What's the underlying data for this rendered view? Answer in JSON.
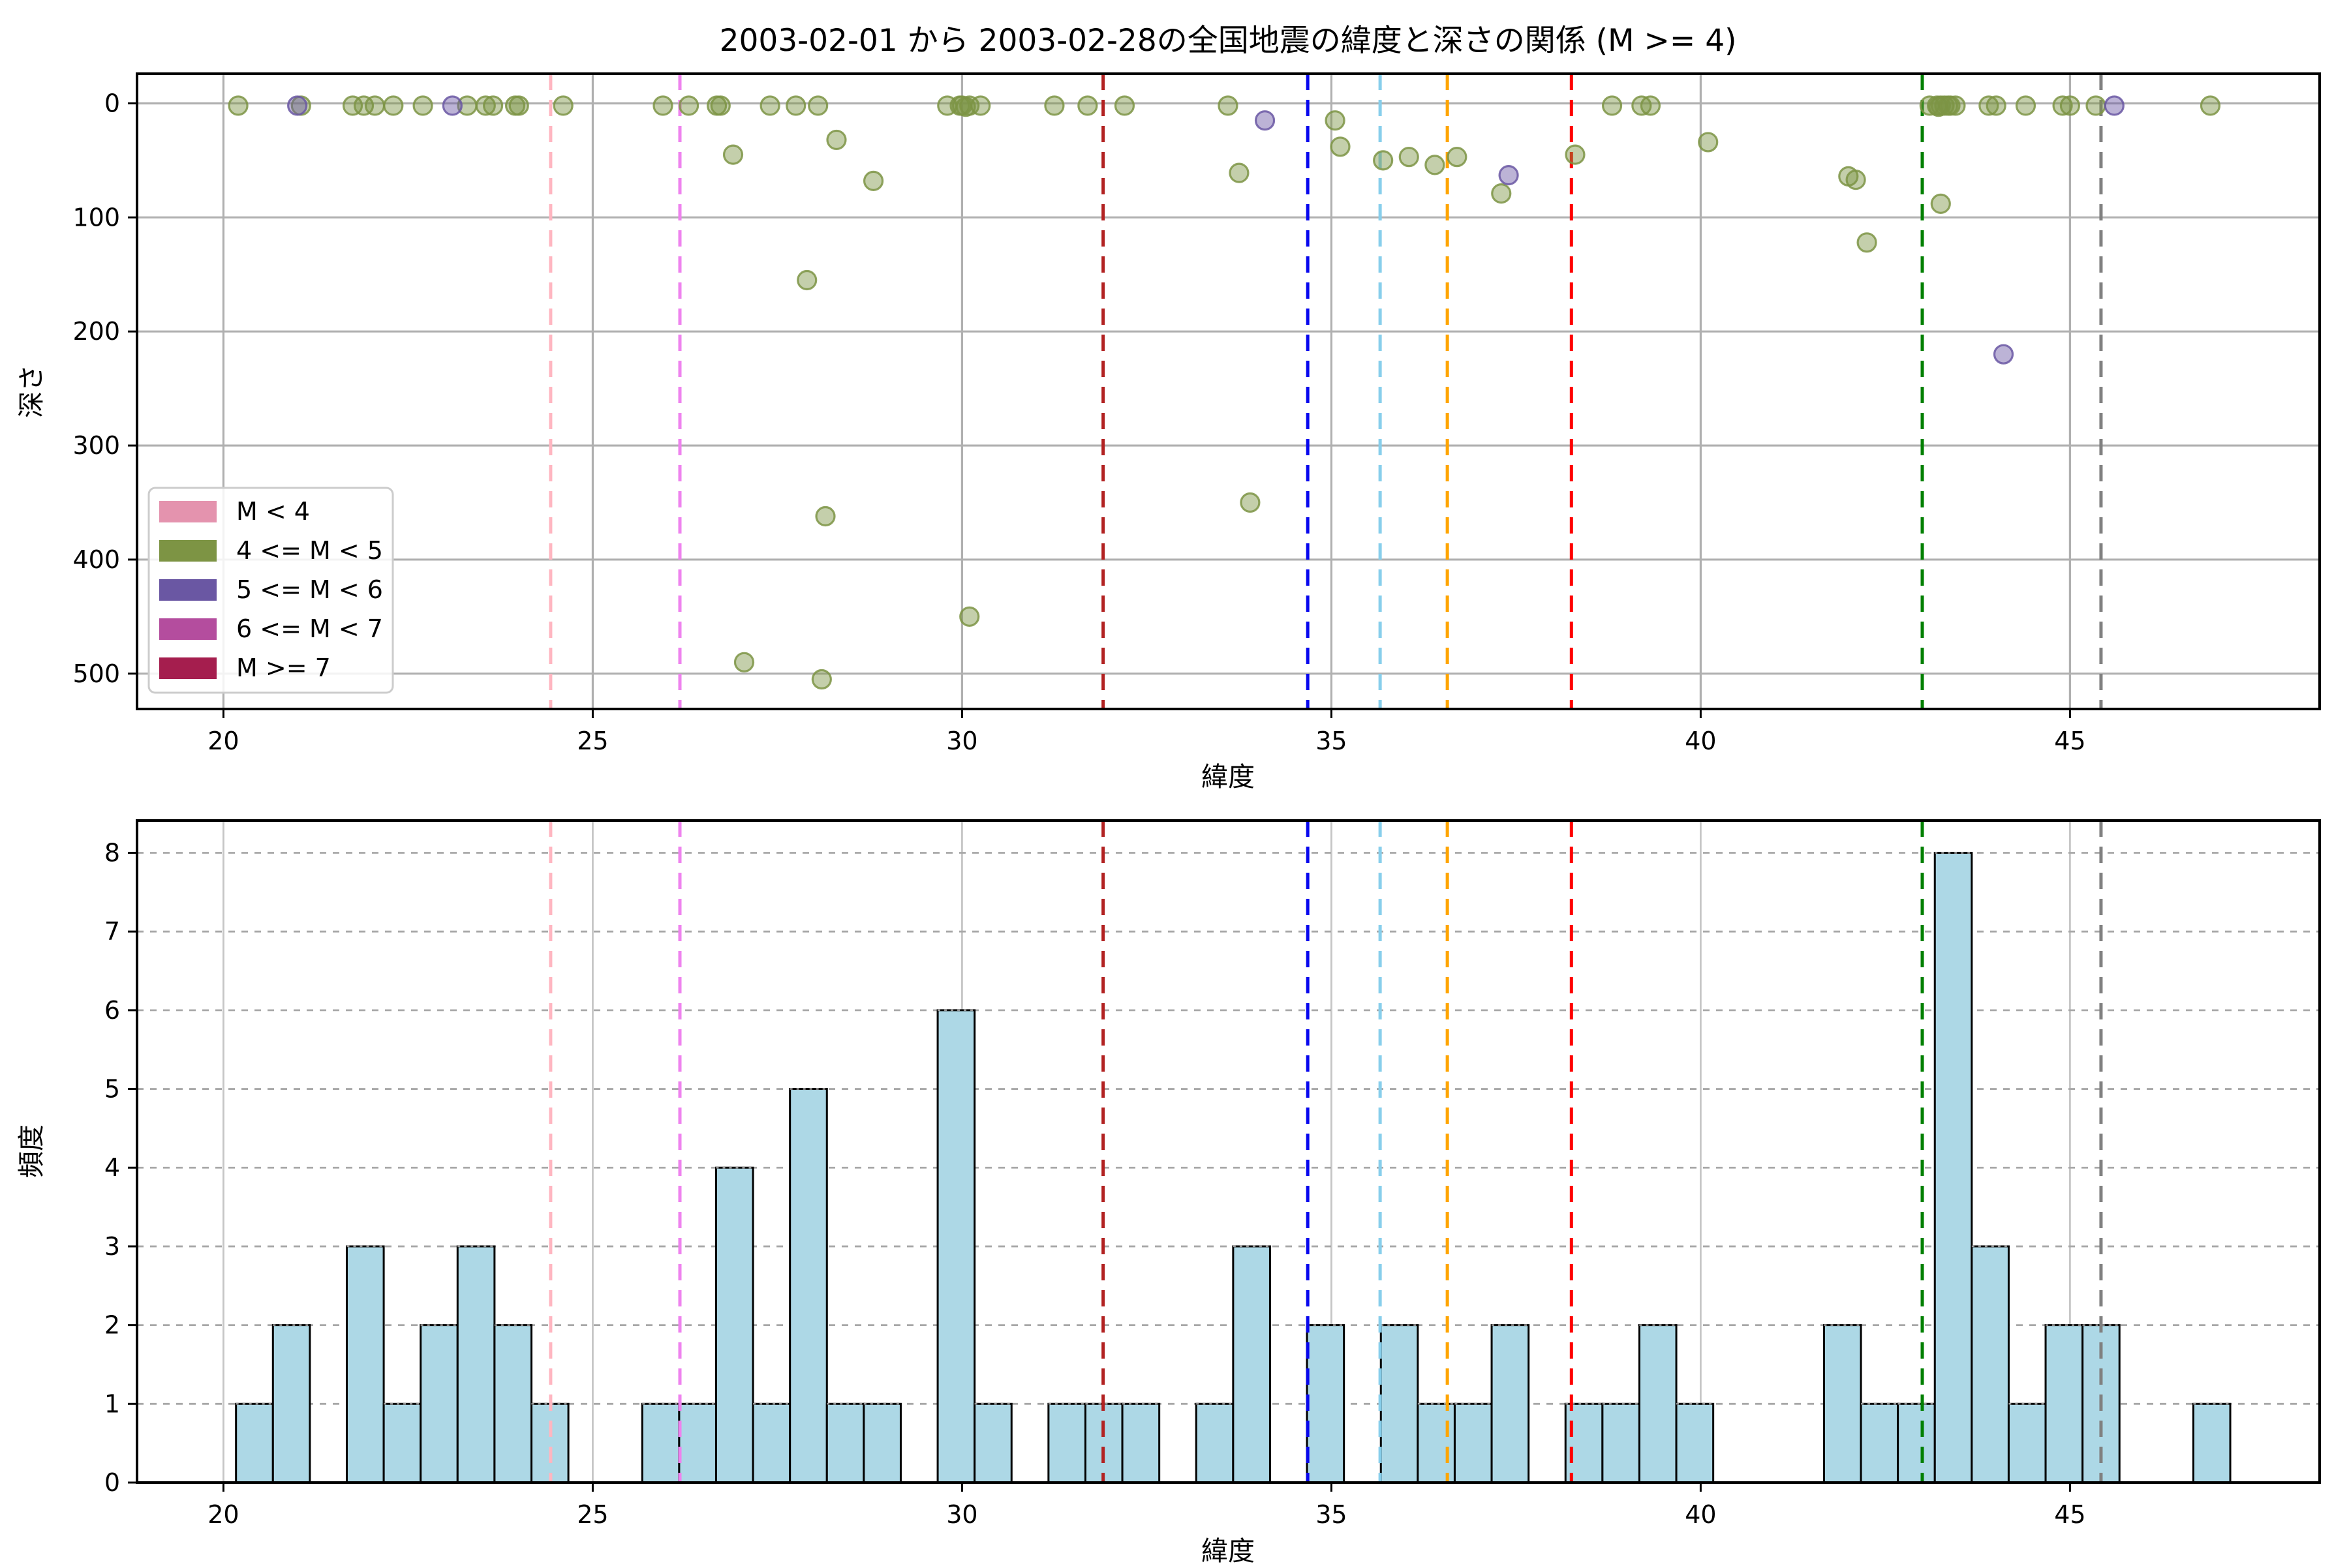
{
  "figure": {
    "background": "#ffffff",
    "title": "2003-02-01 から 2003-02-28の全国地震の緯度と深さの関係 (M >= 4)"
  },
  "chart_data": [
    {
      "type": "scatter",
      "name": "depth-vs-latitude",
      "title": "2003-02-01 から 2003-02-28の全国地震の緯度と深さの関係 (M >= 4)",
      "xlabel": "緯度",
      "ylabel": "深さ",
      "xlim": [
        18.83,
        48.38
      ],
      "ylim_depth": [
        -26,
        531
      ],
      "y_axis_inverted": true,
      "xticks": [
        20,
        25,
        30,
        35,
        40,
        45
      ],
      "yticks": [
        0,
        100,
        200,
        300,
        400,
        500
      ],
      "grid": {
        "style": "solid",
        "color": "#b0b0b0"
      },
      "legend": {
        "position": "lower-left",
        "entries": [
          {
            "label": "M < 4",
            "color": "#e493ae"
          },
          {
            "label": "4 <= M < 5",
            "color": "#7d9444"
          },
          {
            "label": "5 <= M < 6",
            "color": "#6a57a3"
          },
          {
            "label": "6 <= M < 7",
            "color": "#b44d9e"
          },
          {
            "label": "M >= 7",
            "color": "#a51e4e"
          }
        ]
      },
      "series": [
        {
          "name": "4 <= M < 5",
          "color": "#7d9444",
          "points": [
            [
              20.2,
              2
            ],
            [
              21.05,
              2
            ],
            [
              21.75,
              2
            ],
            [
              21.9,
              2
            ],
            [
              22.05,
              2
            ],
            [
              22.3,
              2
            ],
            [
              22.7,
              2
            ],
            [
              23.3,
              2
            ],
            [
              23.55,
              2
            ],
            [
              23.65,
              2
            ],
            [
              23.95,
              2
            ],
            [
              24.0,
              2
            ],
            [
              24.6,
              2
            ],
            [
              25.95,
              2
            ],
            [
              26.3,
              2
            ],
            [
              26.68,
              2
            ],
            [
              26.73,
              2
            ],
            [
              26.9,
              45
            ],
            [
              27.05,
              490
            ],
            [
              27.4,
              2
            ],
            [
              27.75,
              2
            ],
            [
              27.9,
              155
            ],
            [
              28.05,
              2
            ],
            [
              28.1,
              505
            ],
            [
              28.15,
              362
            ],
            [
              28.3,
              32
            ],
            [
              28.8,
              68
            ],
            [
              29.8,
              2
            ],
            [
              29.97,
              2
            ],
            [
              30.0,
              2
            ],
            [
              30.05,
              3
            ],
            [
              30.1,
              2
            ],
            [
              30.1,
              450
            ],
            [
              30.25,
              2
            ],
            [
              31.25,
              2
            ],
            [
              31.7,
              2
            ],
            [
              32.2,
              2
            ],
            [
              33.6,
              2
            ],
            [
              33.75,
              61
            ],
            [
              33.9,
              350
            ],
            [
              35.05,
              15
            ],
            [
              35.12,
              38
            ],
            [
              35.7,
              50
            ],
            [
              36.05,
              47
            ],
            [
              36.4,
              54
            ],
            [
              36.7,
              47
            ],
            [
              37.3,
              79
            ],
            [
              38.3,
              45
            ],
            [
              38.8,
              2
            ],
            [
              39.2,
              2
            ],
            [
              39.32,
              2
            ],
            [
              40.1,
              34
            ],
            [
              42.0,
              64
            ],
            [
              42.1,
              67
            ],
            [
              42.25,
              122
            ],
            [
              43.1,
              2
            ],
            [
              43.2,
              2
            ],
            [
              43.22,
              3
            ],
            [
              43.25,
              2
            ],
            [
              43.25,
              88
            ],
            [
              43.3,
              2
            ],
            [
              43.35,
              2
            ],
            [
              43.38,
              2
            ],
            [
              43.45,
              2
            ],
            [
              43.9,
              2
            ],
            [
              44.0,
              2
            ],
            [
              44.4,
              2
            ],
            [
              44.9,
              2
            ],
            [
              45.0,
              2
            ],
            [
              45.35,
              2
            ],
            [
              46.9,
              2
            ]
          ]
        },
        {
          "name": "5 <= M < 6",
          "color": "#6a57a3",
          "points": [
            [
              21.0,
              2
            ],
            [
              23.1,
              2
            ],
            [
              34.1,
              15
            ],
            [
              37.4,
              63
            ],
            [
              44.1,
              220
            ],
            [
              45.6,
              2
            ]
          ]
        }
      ],
      "vlines": [
        {
          "x": 24.43,
          "color": "#ffb6c1"
        },
        {
          "x": 26.18,
          "color": "#ee82ee"
        },
        {
          "x": 31.91,
          "color": "#b22222"
        },
        {
          "x": 34.68,
          "color": "#0808ee"
        },
        {
          "x": 35.66,
          "color": "#87ceeb"
        },
        {
          "x": 36.57,
          "color": "#ffa500"
        },
        {
          "x": 38.25,
          "color": "#ff0000"
        },
        {
          "x": 43.0,
          "color": "#008000"
        },
        {
          "x": 45.42,
          "color": "#808080"
        }
      ]
    },
    {
      "type": "bar",
      "name": "latitude-frequency-histogram",
      "xlabel": "緯度",
      "ylabel": "頻度",
      "xlim": [
        18.83,
        48.38
      ],
      "ylim": [
        0,
        8.41
      ],
      "xticks": [
        20,
        25,
        30,
        35,
        40,
        45
      ],
      "yticks": [
        0,
        1,
        2,
        3,
        4,
        5,
        6,
        7,
        8
      ],
      "grid": {
        "h_style": "dashed",
        "v_style": "solid",
        "color": "#b0b0b0"
      },
      "bar_color": "#add8e6",
      "bar_edge_color": "#000000",
      "bin_start": 20.17,
      "bin_width": 0.5,
      "counts": [
        1,
        2,
        0,
        3,
        1,
        2,
        3,
        2,
        1,
        0,
        0,
        1,
        1,
        4,
        1,
        5,
        1,
        1,
        0,
        6,
        1,
        0,
        1,
        1,
        1,
        0,
        1,
        3,
        0,
        2,
        0,
        2,
        1,
        1,
        2,
        0,
        1,
        1,
        2,
        1,
        0,
        0,
        0,
        2,
        1,
        1,
        8,
        3,
        1,
        2,
        2,
        0,
        0,
        1
      ],
      "vlines": [
        {
          "x": 24.43,
          "color": "#ffb6c1"
        },
        {
          "x": 26.18,
          "color": "#ee82ee"
        },
        {
          "x": 31.91,
          "color": "#b22222"
        },
        {
          "x": 34.68,
          "color": "#0808ee"
        },
        {
          "x": 35.66,
          "color": "#87ceeb"
        },
        {
          "x": 36.57,
          "color": "#ffa500"
        },
        {
          "x": 38.25,
          "color": "#ff0000"
        },
        {
          "x": 43.0,
          "color": "#008000"
        },
        {
          "x": 45.42,
          "color": "#808080"
        }
      ]
    }
  ]
}
